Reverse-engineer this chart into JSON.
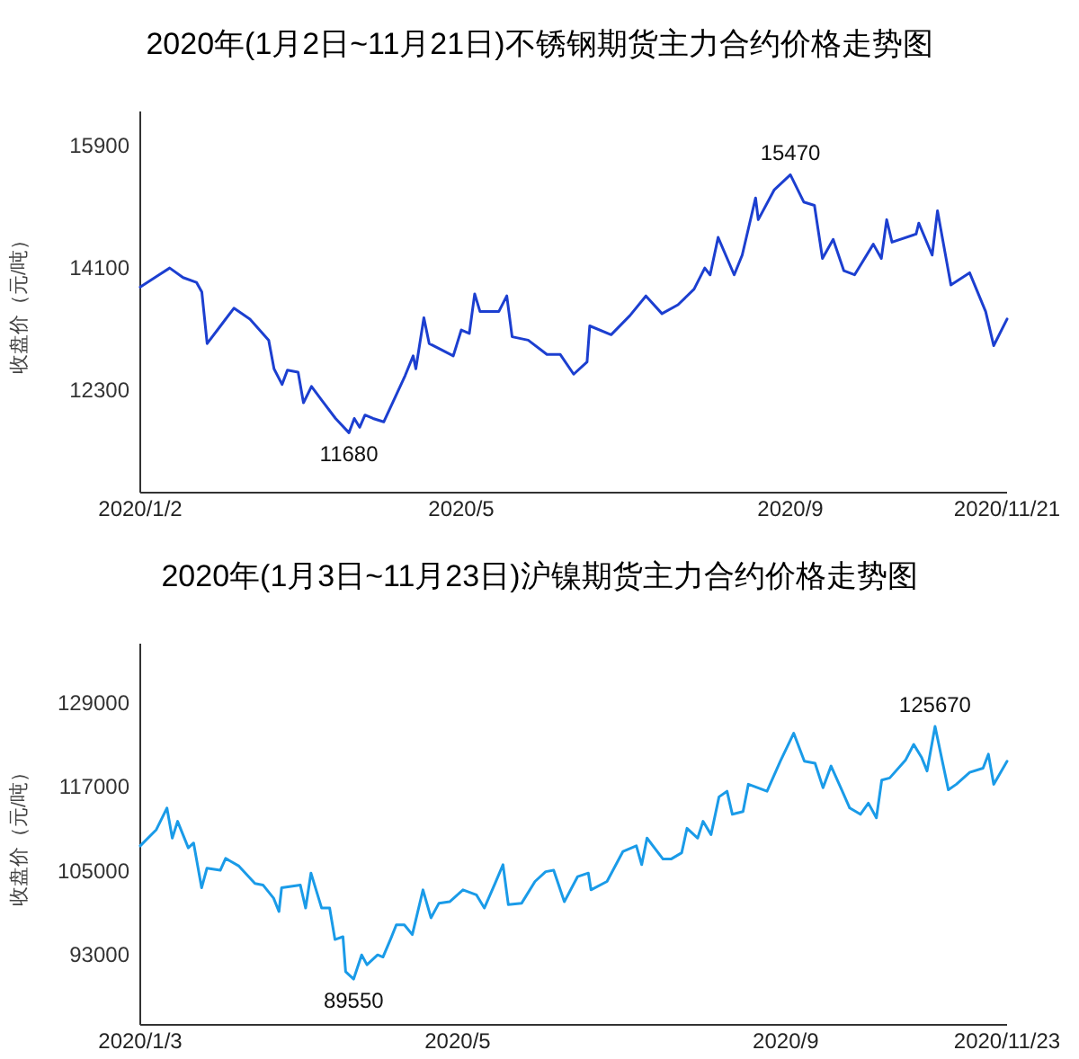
{
  "chart_data": [
    {
      "type": "line",
      "title": "2020年(1月2日~11月21日)不锈钢期货主力合约价格走势图",
      "ylabel": "收盘价（元/吨）",
      "x": [
        "2020-01-02",
        "2020-01-09",
        "2020-01-13",
        "2020-01-18",
        "2020-01-23",
        "2020-01-25",
        "2020-01-27",
        "2020-02-01",
        "2020-02-06",
        "2020-02-12",
        "2020-02-19",
        "2020-02-21",
        "2020-02-24",
        "2020-02-26",
        "2020-03-01",
        "2020-03-03",
        "2020-03-06",
        "2020-03-10",
        "2020-03-15",
        "2020-03-20",
        "2020-03-22",
        "2020-03-24",
        "2020-03-26",
        "2020-03-29",
        "2020-04-02",
        "2020-04-10",
        "2020-04-13",
        "2020-04-14",
        "2020-04-17",
        "2020-04-19",
        "2020-04-28",
        "2020-05-01",
        "2020-05-04",
        "2020-05-06",
        "2020-05-08",
        "2020-05-15",
        "2020-05-18",
        "2020-05-20",
        "2020-05-26",
        "2020-06-02",
        "2020-06-07",
        "2020-06-12",
        "2020-06-17",
        "2020-06-18",
        "2020-06-26",
        "2020-07-03",
        "2020-07-09",
        "2020-07-15",
        "2020-07-21",
        "2020-07-27",
        "2020-07-31",
        "2020-08-02",
        "2020-08-05",
        "2020-08-11",
        "2020-08-14",
        "2020-08-19",
        "2020-08-20",
        "2020-08-26",
        "2020-09-01",
        "2020-09-06",
        "2020-09-10",
        "2020-09-13",
        "2020-09-17",
        "2020-09-21",
        "2020-09-25",
        "2020-10-02",
        "2020-10-05",
        "2020-10-07",
        "2020-10-09",
        "2020-10-18",
        "2020-10-19",
        "2020-10-24",
        "2020-10-26",
        "2020-10-31",
        "2020-11-07",
        "2020-11-13",
        "2020-11-16",
        "2020-11-21"
      ],
      "series": [
        {
          "color": "#1c3fd0",
          "values": [
            13820,
            14000,
            14100,
            13960,
            13890,
            13750,
            12990,
            13250,
            13510,
            13350,
            13040,
            12620,
            12390,
            12600,
            12570,
            12120,
            12360,
            12150,
            11890,
            11680,
            11890,
            11760,
            11940,
            11890,
            11840,
            12520,
            12810,
            12620,
            13370,
            12990,
            12810,
            13190,
            13140,
            13720,
            13460,
            13460,
            13690,
            13090,
            13040,
            12830,
            12830,
            12540,
            12720,
            13250,
            13120,
            13400,
            13690,
            13430,
            13560,
            13790,
            14100,
            14000,
            14550,
            14000,
            14290,
            15130,
            14810,
            15250,
            15470,
            15070,
            15020,
            14240,
            14520,
            14060,
            14000,
            14450,
            14240,
            14810,
            14480,
            14600,
            14760,
            14290,
            14940,
            13850,
            14030,
            13460,
            12960,
            13350
          ]
        }
      ],
      "xlim": [
        "2020-01-02",
        "2020-11-21"
      ],
      "xticks": [
        {
          "value": "2020-01-02",
          "label": "2020/1/2"
        },
        {
          "value": "2020-05-01",
          "label": "2020/5"
        },
        {
          "value": "2020-09-01",
          "label": "2020/9"
        },
        {
          "value": "2020-11-21",
          "label": "2020/11/21"
        }
      ],
      "ylim": [
        10800,
        16400
      ],
      "yticks": [
        12300,
        14100,
        15900
      ],
      "annotations": [
        {
          "text": "15470",
          "x": "2020-09-01",
          "y": 15470
        },
        {
          "text": "11680",
          "x": "2020-03-20",
          "y": 11680
        }
      ]
    },
    {
      "type": "line",
      "title": "2020年(1月3日~11月23日)沪镍期货主力合约价格走势图",
      "ylabel": "收盘价（元/吨）",
      "x": [
        "2020-01-03",
        "2020-01-09",
        "2020-01-13",
        "2020-01-15",
        "2020-01-17",
        "2020-01-21",
        "2020-01-23",
        "2020-01-26",
        "2020-01-28",
        "2020-02-02",
        "2020-02-04",
        "2020-02-09",
        "2020-02-15",
        "2020-02-18",
        "2020-02-22",
        "2020-02-24",
        "2020-02-25",
        "2020-03-03",
        "2020-03-05",
        "2020-03-07",
        "2020-03-11",
        "2020-03-14",
        "2020-03-16",
        "2020-03-19",
        "2020-03-20",
        "2020-03-23",
        "2020-03-26",
        "2020-03-28",
        "2020-04-01",
        "2020-04-03",
        "2020-04-06",
        "2020-04-08",
        "2020-04-11",
        "2020-04-14",
        "2020-04-18",
        "2020-04-21",
        "2020-04-24",
        "2020-04-28",
        "2020-05-03",
        "2020-05-08",
        "2020-05-11",
        "2020-05-15",
        "2020-05-18",
        "2020-05-20",
        "2020-05-25",
        "2020-05-30",
        "2020-06-03",
        "2020-06-06",
        "2020-06-10",
        "2020-06-15",
        "2020-06-19",
        "2020-06-20",
        "2020-06-26",
        "2020-07-02",
        "2020-07-07",
        "2020-07-09",
        "2020-07-11",
        "2020-07-17",
        "2020-07-20",
        "2020-07-24",
        "2020-07-26",
        "2020-07-30",
        "2020-08-01",
        "2020-08-04",
        "2020-08-07",
        "2020-08-10",
        "2020-08-12",
        "2020-08-16",
        "2020-08-18",
        "2020-08-25",
        "2020-08-30",
        "2020-09-04",
        "2020-09-08",
        "2020-09-12",
        "2020-09-15",
        "2020-09-18",
        "2020-09-22",
        "2020-09-25",
        "2020-09-29",
        "2020-10-02",
        "2020-10-05",
        "2020-10-07",
        "2020-10-10",
        "2020-10-16",
        "2020-10-19",
        "2020-10-22",
        "2020-10-24",
        "2020-10-27",
        "2020-10-30",
        "2020-11-01",
        "2020-11-04",
        "2020-11-09",
        "2020-11-14",
        "2020-11-16",
        "2020-11-18",
        "2020-11-23"
      ],
      "series": [
        {
          "color": "#1a9be8",
          "values": [
            108600,
            110900,
            114000,
            109700,
            112100,
            108300,
            109000,
            102600,
            105400,
            105100,
            106800,
            105700,
            103200,
            103000,
            101100,
            99200,
            102600,
            103000,
            99700,
            104700,
            99700,
            99700,
            95200,
            95600,
            90600,
            89550,
            93000,
            91600,
            93000,
            92700,
            95400,
            97300,
            97300,
            95900,
            102300,
            98300,
            100400,
            100600,
            102300,
            101600,
            99700,
            103200,
            105900,
            100200,
            100400,
            103500,
            104900,
            105100,
            100600,
            104200,
            104700,
            102300,
            103500,
            107800,
            108600,
            105900,
            109700,
            106700,
            106700,
            107600,
            111100,
            109700,
            112100,
            110200,
            115600,
            116400,
            113100,
            113500,
            117400,
            116400,
            120700,
            124700,
            120700,
            120400,
            116900,
            120000,
            116600,
            114000,
            113100,
            114700,
            112600,
            118000,
            118300,
            120900,
            123100,
            121200,
            119300,
            125670,
            120200,
            116600,
            117400,
            119100,
            119700,
            121700,
            117400,
            120700
          ]
        }
      ],
      "xlim": [
        "2020-01-03",
        "2020-11-23"
      ],
      "xticks": [
        {
          "value": "2020-01-03",
          "label": "2020/1/3"
        },
        {
          "value": "2020-05-01",
          "label": "2020/5"
        },
        {
          "value": "2020-09-01",
          "label": "2020/9"
        },
        {
          "value": "2020-11-23",
          "label": "2020/11/23"
        }
      ],
      "ylim": [
        83000,
        137500
      ],
      "yticks": [
        93000,
        105000,
        117000,
        129000
      ],
      "annotations": [
        {
          "text": "125670",
          "x": "2020-10-27",
          "y": 125670
        },
        {
          "text": "89550",
          "x": "2020-03-23",
          "y": 89550
        }
      ]
    }
  ]
}
